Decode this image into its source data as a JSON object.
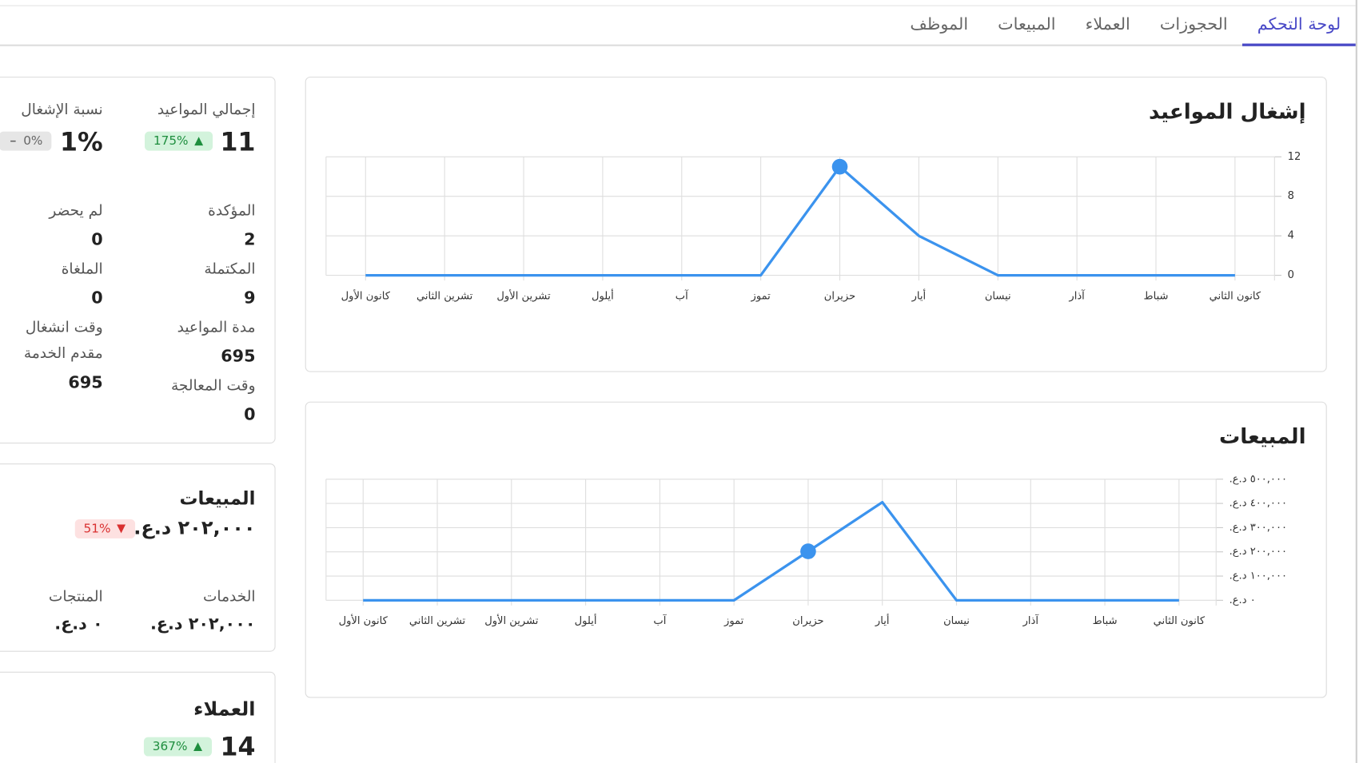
{
  "tabs": [
    "لوحة التحكم",
    "الحجوزات",
    "العملاء",
    "المبيعات",
    "الموظف"
  ],
  "active_tab": 0,
  "appointments_card": {
    "total_label": "إجمالي المواعيد",
    "total": "11",
    "total_change": "175%",
    "occupancy_label": "نسبة الإشغال",
    "occupancy": "1%",
    "occupancy_change": "0%",
    "stats": [
      {
        "label": "المؤكدة",
        "value": "2"
      },
      {
        "label": "لم يحضر",
        "value": "0"
      },
      {
        "label": "المكتملة",
        "value": "9"
      },
      {
        "label": "الملغاة",
        "value": "0"
      },
      {
        "label": "مدة المواعيد",
        "value": "695"
      },
      {
        "label": "وقت انشغال مقدم الخدمة",
        "value": "695"
      },
      {
        "label": "وقت المعالجة",
        "value": "0"
      }
    ]
  },
  "sales_card": {
    "title": "المبيعات",
    "total": "٢٠٢,٠٠٠ د.ع.",
    "change": "51%",
    "services_label": "الخدمات",
    "services": "٢٠٢,٠٠٠ د.ع.",
    "products_label": "المنتجات",
    "products": "٠ د.ع."
  },
  "customers_card": {
    "title": "العملاء",
    "total": "14",
    "change": "367%"
  },
  "chart_data": [
    {
      "type": "line",
      "title": "إشغال المواعيد",
      "categories": [
        "كانون الثاني",
        "شباط",
        "آذار",
        "نيسان",
        "أيار",
        "حزيران",
        "تموز",
        "آب",
        "أيلول",
        "تشرين الأول",
        "تشرين الثاني",
        "كانون الأول"
      ],
      "values": [
        0,
        0,
        0,
        0,
        4,
        11,
        0,
        0,
        0,
        0,
        0,
        0
      ],
      "color": "#3b93ee",
      "ylim": [
        0,
        12
      ],
      "yticks": [
        0,
        4,
        8,
        12
      ],
      "grid": true,
      "x_reversed": true,
      "y_axis_side": "right",
      "highlight_index": 5
    },
    {
      "type": "line",
      "title": "المبيعات",
      "categories": [
        "كانون الثاني",
        "شباط",
        "آذار",
        "نيسان",
        "أيار",
        "حزيران",
        "تموز",
        "آب",
        "أيلول",
        "تشرين الأول",
        "تشرين الثاني",
        "كانون الأول"
      ],
      "values": [
        0,
        0,
        0,
        0,
        405000,
        202000,
        0,
        0,
        0,
        0,
        0,
        0
      ],
      "color": "#3b93ee",
      "ylim": [
        0,
        500000
      ],
      "yticks": [
        {
          "value": 0,
          "label": "٠ د.ع."
        },
        {
          "value": 100000,
          "label": "١٠٠,٠٠٠ د.ع."
        },
        {
          "value": 200000,
          "label": "٢٠٠,٠٠٠ د.ع."
        },
        {
          "value": 300000,
          "label": "٣٠٠,٠٠٠ د.ع."
        },
        {
          "value": 400000,
          "label": "٤٠٠,٠٠٠ د.ع."
        },
        {
          "value": 500000,
          "label": "٥٠٠,٠٠٠ د.ع."
        }
      ],
      "grid": true,
      "x_reversed": true,
      "y_axis_side": "right",
      "highlight_index": 5
    }
  ]
}
